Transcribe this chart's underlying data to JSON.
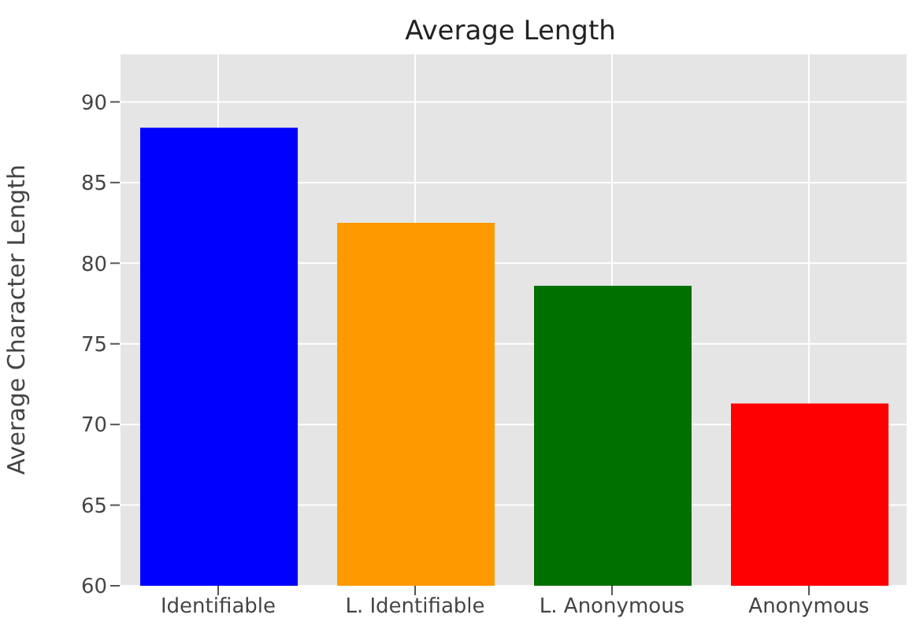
{
  "chart_data": {
    "type": "bar",
    "title": "Average Length",
    "ylabel": "Average Character Length",
    "categories": [
      "Identifiable",
      "L. Identifiable",
      "L. Anonymous",
      "Anonymous"
    ],
    "values": [
      88.4,
      82.5,
      78.6,
      71.3
    ],
    "colors": [
      "#0000ff",
      "#ff9900",
      "#007000",
      "#ff0000"
    ],
    "ylim": [
      60,
      93
    ],
    "yticks": [
      60,
      65,
      70,
      75,
      80,
      85,
      90
    ],
    "grid": true
  }
}
